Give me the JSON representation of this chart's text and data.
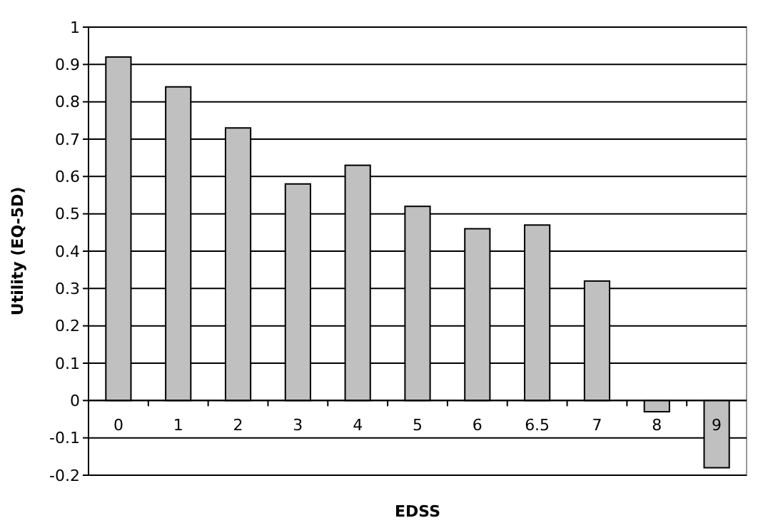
{
  "chart_data": {
    "type": "bar",
    "xlabel": "EDSS",
    "ylabel": "Utility (EQ-5D)",
    "categories": [
      "0",
      "1",
      "2",
      "3",
      "4",
      "5",
      "6",
      "6.5",
      "7",
      "8",
      "9"
    ],
    "values": [
      0.92,
      0.84,
      0.73,
      0.58,
      0.63,
      0.52,
      0.46,
      0.47,
      0.32,
      -0.03,
      -0.18
    ],
    "color": "#c0c0c0",
    "ylim": [
      -0.2,
      1
    ],
    "yticks": [
      -0.2,
      -0.1,
      0,
      0.1,
      0.2,
      0.3,
      0.4,
      0.5,
      0.6,
      0.7,
      0.8,
      0.9,
      1
    ],
    "grid": "y"
  }
}
